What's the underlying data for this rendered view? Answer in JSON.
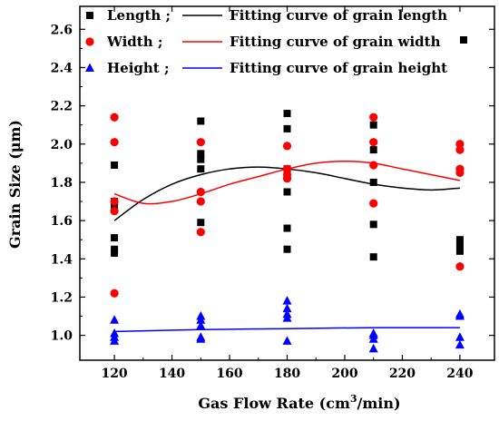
{
  "chart_data": {
    "type": "scatter",
    "xlabel": "Gas Flow Rate (cm",
    "xlabel_sup": "3",
    "xlabel_tail": "/min)",
    "ylabel": "Grain Size (μm)",
    "xlim": [
      108,
      252
    ],
    "ylim": [
      0.87,
      2.72
    ],
    "x_ticks": [
      120,
      140,
      160,
      180,
      200,
      220,
      240
    ],
    "x_tick_labels": [
      "120",
      "140",
      "160",
      "180",
      "200",
      "220",
      "240"
    ],
    "y_ticks": [
      1.0,
      1.2,
      1.4,
      1.6,
      1.8,
      2.0,
      2.2,
      2.4,
      2.6
    ],
    "y_tick_labels": [
      "1.0",
      "1.2",
      "1.4",
      "1.6",
      "1.8",
      "2.0",
      "2.2",
      "2.4",
      "2.6"
    ],
    "grid": false,
    "legend_position": "top",
    "series": [
      {
        "name": "Length ;",
        "marker": "square",
        "color": "#000000",
        "points": [
          [
            120,
            1.89
          ],
          [
            120,
            1.7
          ],
          [
            120,
            1.67
          ],
          [
            120,
            1.51
          ],
          [
            120,
            1.45
          ],
          [
            120,
            1.43
          ],
          [
            150,
            2.12
          ],
          [
            150,
            1.95
          ],
          [
            150,
            1.92
          ],
          [
            150,
            1.87
          ],
          [
            150,
            1.59
          ],
          [
            180,
            2.16
          ],
          [
            180,
            2.08
          ],
          [
            180,
            1.87
          ],
          [
            180,
            1.75
          ],
          [
            180,
            1.56
          ],
          [
            180,
            1.45
          ],
          [
            210,
            2.1
          ],
          [
            210,
            1.97
          ],
          [
            210,
            1.8
          ],
          [
            210,
            1.58
          ],
          [
            210,
            1.41
          ],
          [
            240,
            1.5
          ],
          [
            240,
            1.47
          ],
          [
            240,
            1.44
          ]
        ]
      },
      {
        "name": "Width  ;",
        "marker": "circle",
        "color": "#ff0000",
        "points": [
          [
            120,
            2.14
          ],
          [
            120,
            2.01
          ],
          [
            120,
            1.7
          ],
          [
            120,
            1.65
          ],
          [
            120,
            1.22
          ],
          [
            150,
            2.01
          ],
          [
            150,
            1.75
          ],
          [
            150,
            1.7
          ],
          [
            150,
            1.54
          ],
          [
            180,
            1.99
          ],
          [
            180,
            1.87
          ],
          [
            180,
            1.84
          ],
          [
            180,
            1.82
          ],
          [
            210,
            2.14
          ],
          [
            210,
            2.01
          ],
          [
            210,
            1.89
          ],
          [
            210,
            1.69
          ],
          [
            240,
            2.0
          ],
          [
            240,
            1.97
          ],
          [
            240,
            1.87
          ],
          [
            240,
            1.85
          ],
          [
            240,
            1.36
          ]
        ]
      },
      {
        "name": "Height ;",
        "marker": "triangle",
        "color": "#0000ff",
        "points": [
          [
            120,
            1.08
          ],
          [
            120,
            1.01
          ],
          [
            120,
            0.99
          ],
          [
            120,
            0.97
          ],
          [
            150,
            1.1
          ],
          [
            150,
            1.08
          ],
          [
            150,
            1.05
          ],
          [
            150,
            0.99
          ],
          [
            150,
            0.98
          ],
          [
            180,
            1.18
          ],
          [
            180,
            1.14
          ],
          [
            180,
            1.11
          ],
          [
            180,
            1.09
          ],
          [
            180,
            0.97
          ],
          [
            210,
            1.01
          ],
          [
            210,
            1.0
          ],
          [
            210,
            0.98
          ],
          [
            210,
            0.93
          ],
          [
            240,
            1.11
          ],
          [
            240,
            1.1
          ],
          [
            240,
            0.99
          ],
          [
            240,
            0.95
          ]
        ]
      }
    ],
    "fit_curves": [
      {
        "name": "Fitting curve of grain length",
        "color": "#000000",
        "points": [
          [
            120,
            1.6
          ],
          [
            130,
            1.71
          ],
          [
            140,
            1.79
          ],
          [
            150,
            1.84
          ],
          [
            160,
            1.87
          ],
          [
            170,
            1.88
          ],
          [
            180,
            1.87
          ],
          [
            190,
            1.85
          ],
          [
            200,
            1.82
          ],
          [
            210,
            1.79
          ],
          [
            220,
            1.77
          ],
          [
            230,
            1.76
          ],
          [
            240,
            1.77
          ]
        ]
      },
      {
        "name": "Fitting curve of grain width",
        "color": "#ff0000",
        "points": [
          [
            120,
            1.74
          ],
          [
            130,
            1.69
          ],
          [
            140,
            1.7
          ],
          [
            150,
            1.74
          ],
          [
            160,
            1.79
          ],
          [
            170,
            1.83
          ],
          [
            180,
            1.87
          ],
          [
            190,
            1.9
          ],
          [
            200,
            1.91
          ],
          [
            210,
            1.9
          ],
          [
            220,
            1.87
          ],
          [
            230,
            1.84
          ],
          [
            240,
            1.81
          ]
        ]
      },
      {
        "name": "Fitting curve of grain height",
        "color": "#0000ff",
        "points": [
          [
            120,
            1.02
          ],
          [
            150,
            1.03
          ],
          [
            180,
            1.035
          ],
          [
            210,
            1.04
          ],
          [
            240,
            1.04
          ]
        ]
      }
    ]
  }
}
